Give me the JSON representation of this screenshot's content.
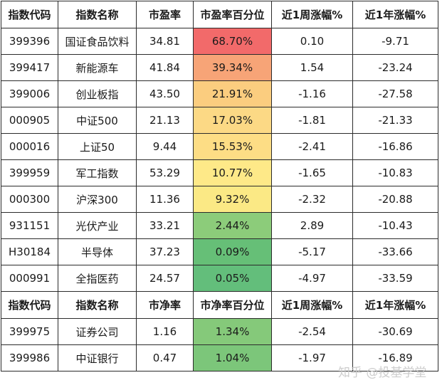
{
  "header1": [
    "指数代码",
    "指数名称",
    "市盈率",
    "市盈率百分位",
    "近1周涨幅%",
    "近1年涨幅%"
  ],
  "rows1": [
    {
      "code": "399396",
      "name": "国证食品饮料",
      "ratio": "34.81",
      "pct": "68.70%",
      "week": "0.10",
      "year": "-9.71",
      "color": "#f26a6a"
    },
    {
      "code": "399417",
      "name": "新能源车",
      "ratio": "41.84",
      "pct": "39.34%",
      "week": "1.54",
      "year": "-23.24",
      "color": "#f7a477"
    },
    {
      "code": "399006",
      "name": "创业板指",
      "ratio": "43.50",
      "pct": "21.91%",
      "week": "-1.16",
      "year": "-27.58",
      "color": "#fbcd7f"
    },
    {
      "code": "000905",
      "name": "中证500",
      "ratio": "21.13",
      "pct": "17.03%",
      "week": "-1.81",
      "year": "-21.33",
      "color": "#fcd985"
    },
    {
      "code": "000016",
      "name": "上证50",
      "ratio": "9.44",
      "pct": "15.53%",
      "week": "-2.41",
      "year": "-16.86",
      "color": "#fddd85"
    },
    {
      "code": "399959",
      "name": "军工指数",
      "ratio": "53.29",
      "pct": "10.77%",
      "week": "-1.65",
      "year": "-10.83",
      "color": "#fee988"
    },
    {
      "code": "000300",
      "name": "沪深300",
      "ratio": "11.36",
      "pct": "9.32%",
      "week": "-2.32",
      "year": "-20.88",
      "color": "#fbe985"
    },
    {
      "code": "931151",
      "name": "光伏产业",
      "ratio": "33.21",
      "pct": "2.44%",
      "week": "2.89",
      "year": "-10.43",
      "color": "#8ccc7a"
    },
    {
      "code": "H30184",
      "name": "半导体",
      "ratio": "37.23",
      "pct": "0.09%",
      "week": "-5.17",
      "year": "-33.66",
      "color": "#66bf77"
    },
    {
      "code": "000991",
      "name": "全指医药",
      "ratio": "24.57",
      "pct": "0.05%",
      "week": "-4.97",
      "year": "-33.59",
      "color": "#63be7b"
    }
  ],
  "header2": [
    "指数代码",
    "指数名称",
    "市净率",
    "市净率百分位",
    "近1周涨幅%",
    "近1年涨幅%"
  ],
  "rows2": [
    {
      "code": "399975",
      "name": "证券公司",
      "ratio": "1.16",
      "pct": "1.34%",
      "week": "-2.54",
      "year": "-30.69",
      "color": "#85c97a"
    },
    {
      "code": "399986",
      "name": "中证银行",
      "ratio": "0.47",
      "pct": "1.04%",
      "week": "-1.97",
      "year": "-16.89",
      "color": "#7cc67a"
    }
  ],
  "watermark": "知乎 @投基学堂"
}
